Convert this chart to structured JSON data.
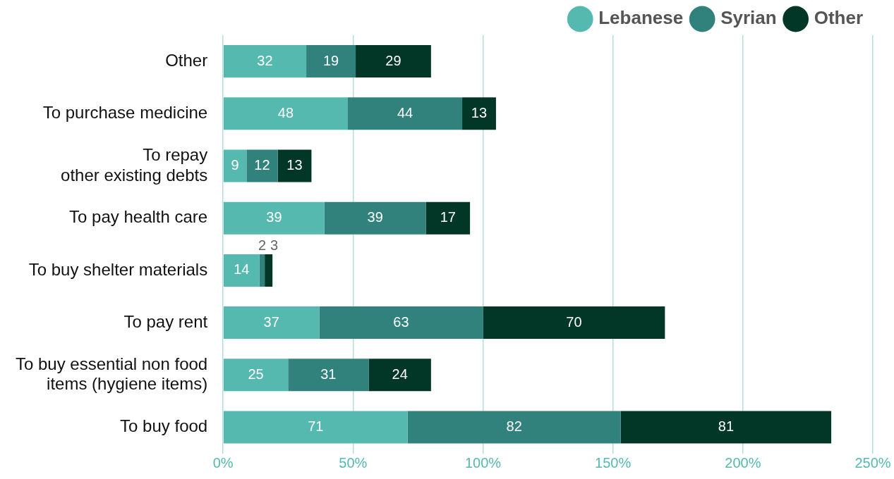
{
  "chart_data": {
    "type": "bar",
    "orientation": "horizontal",
    "stacked": true,
    "categories": [
      "Other",
      "To purchase medicine",
      "To repay\nother existing debts",
      "To pay health care",
      "To buy shelter materials",
      "To pay rent",
      "To buy essential non food\nitems (hygiene items)",
      "To buy food"
    ],
    "series": [
      {
        "name": "Lebanese",
        "color": "#55b9b0",
        "values": [
          32,
          48,
          9,
          39,
          14,
          37,
          25,
          71
        ]
      },
      {
        "name": "Syrian",
        "color": "#31827c",
        "values": [
          19,
          44,
          12,
          39,
          2,
          63,
          31,
          82
        ]
      },
      {
        "name": "Other",
        "color": "#023626",
        "values": [
          29,
          13,
          13,
          17,
          3,
          70,
          24,
          81
        ]
      }
    ],
    "xlim": [
      0,
      250
    ],
    "xticks": [
      {
        "value": 0,
        "label": "0%"
      },
      {
        "value": 50,
        "label": "50%"
      },
      {
        "value": 100,
        "label": "100%"
      },
      {
        "value": 150,
        "label": "150%"
      },
      {
        "value": 200,
        "label": "200%"
      },
      {
        "value": 250,
        "label": "250%"
      }
    ],
    "grid": "x",
    "legend": "top right",
    "data_labels": true
  }
}
